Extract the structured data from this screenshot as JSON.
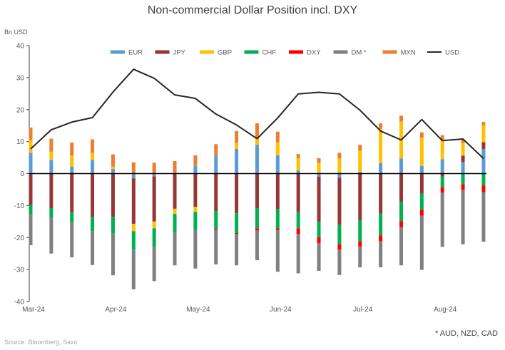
{
  "chart_data": {
    "type": "bar",
    "stacked": true,
    "title": "Non-commercial Dollar Position incl. DXY",
    "ylabel": "Bn USD",
    "xlabel": "",
    "ylim": [
      -40,
      40
    ],
    "yticks": [
      -40,
      -30,
      -20,
      -10,
      0,
      10,
      20,
      30,
      40
    ],
    "x_ticks": [
      {
        "index": 0,
        "label": "Mar-24"
      },
      {
        "index": 4,
        "label": "Apr-24"
      },
      {
        "index": 8,
        "label": "May-24"
      },
      {
        "index": 12,
        "label": "Jun-24"
      },
      {
        "index": 16,
        "label": "Jul-24"
      },
      {
        "index": 20,
        "label": "Aug-24"
      }
    ],
    "grid": false,
    "legend_placement": "top",
    "series": [
      {
        "name": "EUR",
        "kind": "bar",
        "color": "#5B9BD5",
        "values": [
          6.5,
          4.3,
          2.2,
          4.3,
          1.5,
          -1.5,
          -0.9,
          0.4,
          2.4,
          5.5,
          7.7,
          9.0,
          5.7,
          1.0,
          -1.0,
          -1.3,
          0.6,
          3.3,
          4.7,
          2.4,
          4.5,
          3.6,
          7.7
        ]
      },
      {
        "name": "JPY",
        "kind": "bar",
        "color": "#953735",
        "values": [
          -9.8,
          -10.8,
          -12.0,
          -13.5,
          -13.5,
          -14.2,
          -14.1,
          -11.0,
          -10.4,
          -11.7,
          -12.4,
          -10.8,
          -11.1,
          -12.0,
          -14.1,
          -14.7,
          -14.6,
          -12.5,
          -8.8,
          -6.3,
          -0.9,
          2.0,
          2.1
        ]
      },
      {
        "name": "GBP",
        "kind": "bar",
        "color": "#FFC000",
        "values": [
          4.0,
          2.6,
          3.4,
          2.2,
          0.7,
          -2.3,
          -2.1,
          -1.6,
          -1.6,
          0,
          1.9,
          2.1,
          4.1,
          3.8,
          3.3,
          4.7,
          6.6,
          10.7,
          11.6,
          8.8,
          6.0,
          4.0,
          5.3
        ]
      },
      {
        "name": "CHF",
        "kind": "bar",
        "color": "#00B050",
        "values": [
          -2.8,
          -3.1,
          -3.3,
          -4.5,
          -5.3,
          -5.8,
          -5.8,
          -5.8,
          -5.5,
          -5.5,
          -6.2,
          -6.3,
          -6.0,
          -5.1,
          -4.8,
          -6.1,
          -6.6,
          -6.8,
          -6.1,
          -5.0,
          -3.4,
          -3.3,
          -3.7
        ]
      },
      {
        "name": "DXY",
        "kind": "bar",
        "color": "#FF0000",
        "values": [
          0,
          0,
          0,
          0,
          0,
          0,
          0,
          0,
          0,
          -0.3,
          -0.3,
          -0.7,
          -0.5,
          -1.8,
          -1.9,
          -1.7,
          -1.6,
          -1.9,
          -1.8,
          -1.9,
          -1.6,
          -1.8,
          -2.1
        ]
      },
      {
        "name": "DM *",
        "kind": "bar",
        "color": "#808080",
        "values": [
          -9.8,
          -11.1,
          -10.9,
          -10.6,
          -13.0,
          -12.4,
          -10.7,
          -10.3,
          -12.2,
          -10.9,
          -9.8,
          -9.3,
          -13.1,
          -12.3,
          -8.6,
          -7.9,
          -6.5,
          -8.1,
          -12.0,
          -16.9,
          -17.0,
          -17.0,
          -15.5
        ]
      },
      {
        "name": "MXN",
        "kind": "bar",
        "color": "#ED7D31",
        "values": [
          3.9,
          4.0,
          4.1,
          4.2,
          3.8,
          3.5,
          3.4,
          3.5,
          3.3,
          3.7,
          3.7,
          4.6,
          3.3,
          1.3,
          1.5,
          1.8,
          1.8,
          1.7,
          1.8,
          1.7,
          1.5,
          1.1,
          1.0
        ]
      },
      {
        "name": "USD",
        "kind": "line",
        "color": "#262626",
        "values": [
          7.7,
          13.7,
          16.1,
          17.5,
          25.5,
          32.6,
          29.8,
          24.6,
          23.5,
          18.6,
          15.2,
          10.9,
          17.4,
          24.9,
          25.4,
          24.9,
          19.8,
          13.3,
          10.5,
          16.9,
          10.3,
          10.8,
          4.7
        ]
      }
    ]
  },
  "footer": {
    "source": "Source: Bloomberg, Saxo",
    "note": "* AUD, NZD, CAD"
  }
}
